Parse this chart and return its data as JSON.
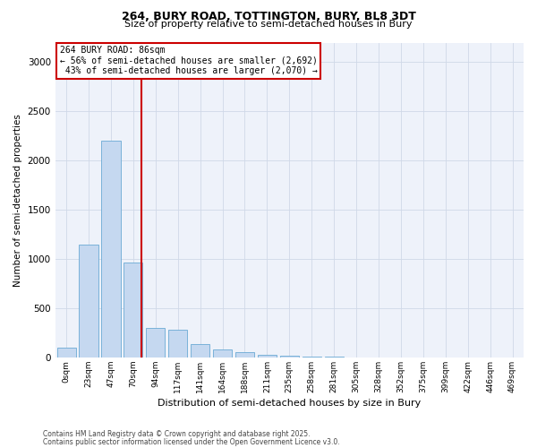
{
  "title_line1": "264, BURY ROAD, TOTTINGTON, BURY, BL8 3DT",
  "title_line2": "Size of property relative to semi-detached houses in Bury",
  "xlabel": "Distribution of semi-detached houses by size in Bury",
  "ylabel": "Number of semi-detached properties",
  "categories": [
    "0sqm",
    "23sqm",
    "47sqm",
    "70sqm",
    "94sqm",
    "117sqm",
    "141sqm",
    "164sqm",
    "188sqm",
    "211sqm",
    "235sqm",
    "258sqm",
    "281sqm",
    "305sqm",
    "328sqm",
    "352sqm",
    "375sqm",
    "399sqm",
    "422sqm",
    "446sqm",
    "469sqm"
  ],
  "bar_values": [
    100,
    1150,
    2200,
    960,
    300,
    280,
    140,
    80,
    50,
    30,
    20,
    10,
    5,
    2,
    0,
    0,
    0,
    0,
    0,
    0,
    0
  ],
  "bar_color": "#c5d8f0",
  "bar_edge_color": "#6aaad4",
  "grid_color": "#d0d8e8",
  "background_color": "#eef2fa",
  "pct_smaller": 56,
  "pct_larger": 43,
  "n_smaller": 2692,
  "n_larger": 2070,
  "vline_color": "#cc0000",
  "ylim": [
    0,
    3200
  ],
  "yticks": [
    0,
    500,
    1000,
    1500,
    2000,
    2500,
    3000
  ],
  "footnote1": "Contains HM Land Registry data © Crown copyright and database right 2025.",
  "footnote2": "Contains public sector information licensed under the Open Government Licence v3.0."
}
